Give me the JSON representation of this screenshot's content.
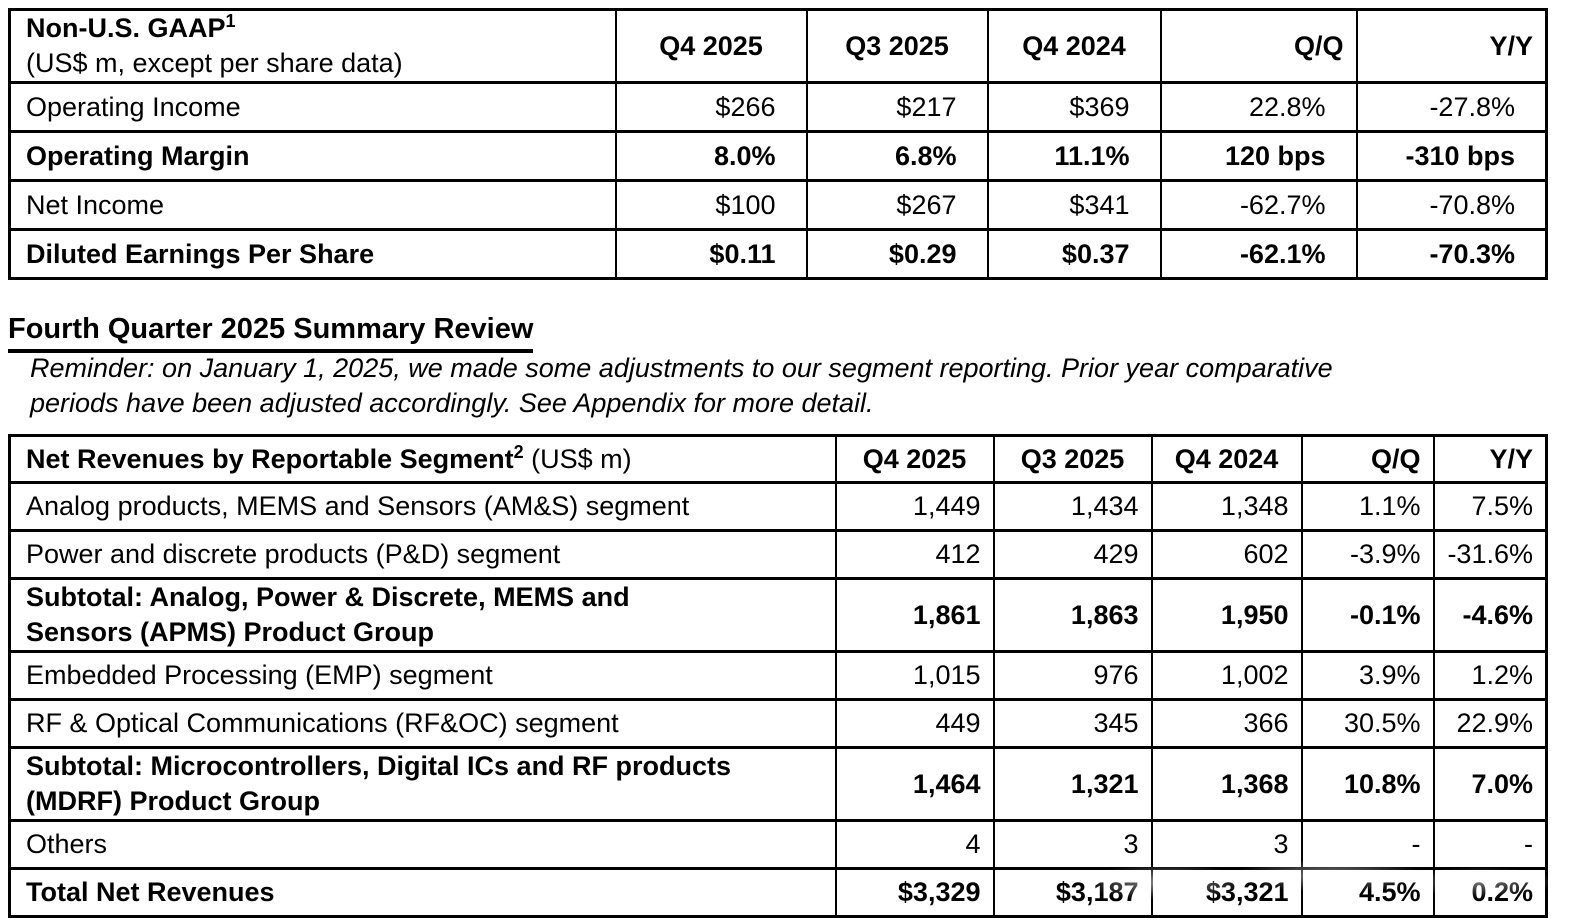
{
  "table1": {
    "title_bold": "Non-U.S. GAAP",
    "title_superscript": "1",
    "title_sub": "(US$ m, except per share data)",
    "columns": [
      "Q4 2025",
      "Q3 2025",
      "Q4 2024",
      "Q/Q",
      "Y/Y"
    ],
    "rows": [
      {
        "label_lines": [
          "Operating Income"
        ],
        "bold": false,
        "values": [
          "$266",
          "$217",
          "$369",
          "22.8%",
          "-27.8%"
        ]
      },
      {
        "label_lines": [
          "Operating Margin"
        ],
        "bold": true,
        "values": [
          "8.0%",
          "6.8%",
          "11.1%",
          "120 bps",
          "-310 bps"
        ]
      },
      {
        "label_lines": [
          "Net Income"
        ],
        "bold": false,
        "values": [
          "$100",
          "$267",
          "$341",
          "-62.7%",
          "-70.8%"
        ]
      },
      {
        "label_lines": [
          "Diluted Earnings Per Share"
        ],
        "bold": true,
        "values": [
          "$0.11",
          "$0.29",
          "$0.37",
          "-62.1%",
          "-70.3%"
        ]
      }
    ]
  },
  "section": {
    "heading": "Fourth Quarter 2025 Summary Review",
    "reminder_lines": [
      "Reminder: on January 1, 2025, we made some adjustments to our segment reporting. Prior year comparative",
      "periods have been adjusted accordingly. See Appendix for more detail."
    ]
  },
  "table2": {
    "title_bold": "Net Revenues by Reportable Segment",
    "title_superscript": "2",
    "title_sub": " (US$ m)",
    "columns": [
      "Q4 2025",
      "Q3 2025",
      "Q4 2024",
      "Q/Q",
      "Y/Y"
    ],
    "rows": [
      {
        "label_lines": [
          "Analog products, MEMS and Sensors (AM&S) segment"
        ],
        "bold": false,
        "values": [
          "1,449",
          "1,434",
          "1,348",
          "1.1%",
          "7.5%"
        ]
      },
      {
        "label_lines": [
          "Power and discrete products (P&D) segment"
        ],
        "bold": false,
        "values": [
          "412",
          "429",
          "602",
          "-3.9%",
          "-31.6%"
        ]
      },
      {
        "label_lines": [
          "Subtotal: Analog, Power & Discrete, MEMS and",
          "Sensors (APMS) Product Group"
        ],
        "bold": true,
        "values": [
          "1,861",
          "1,863",
          "1,950",
          "-0.1%",
          "-4.6%"
        ]
      },
      {
        "label_lines": [
          "Embedded Processing (EMP) segment"
        ],
        "bold": false,
        "values": [
          "1,015",
          "976",
          "1,002",
          "3.9%",
          "1.2%"
        ]
      },
      {
        "label_lines": [
          "RF & Optical Communications (RF&OC) segment"
        ],
        "bold": false,
        "values": [
          "449",
          "345",
          "366",
          "30.5%",
          "22.9%"
        ]
      },
      {
        "label_lines": [
          "Subtotal: Microcontrollers, Digital ICs and RF products",
          "(MDRF) Product Group"
        ],
        "bold": true,
        "values": [
          "1,464",
          "1,321",
          "1,368",
          "10.8%",
          "7.0%"
        ]
      },
      {
        "label_lines": [
          "Others"
        ],
        "bold": false,
        "values": [
          "4",
          "3",
          "3",
          "-",
          "-"
        ]
      },
      {
        "label_lines": [
          "Total Net Revenues"
        ],
        "bold": true,
        "values": [
          "$3,329",
          "$3,187",
          "$3,321",
          "4.5%",
          "0.2%"
        ]
      }
    ]
  }
}
